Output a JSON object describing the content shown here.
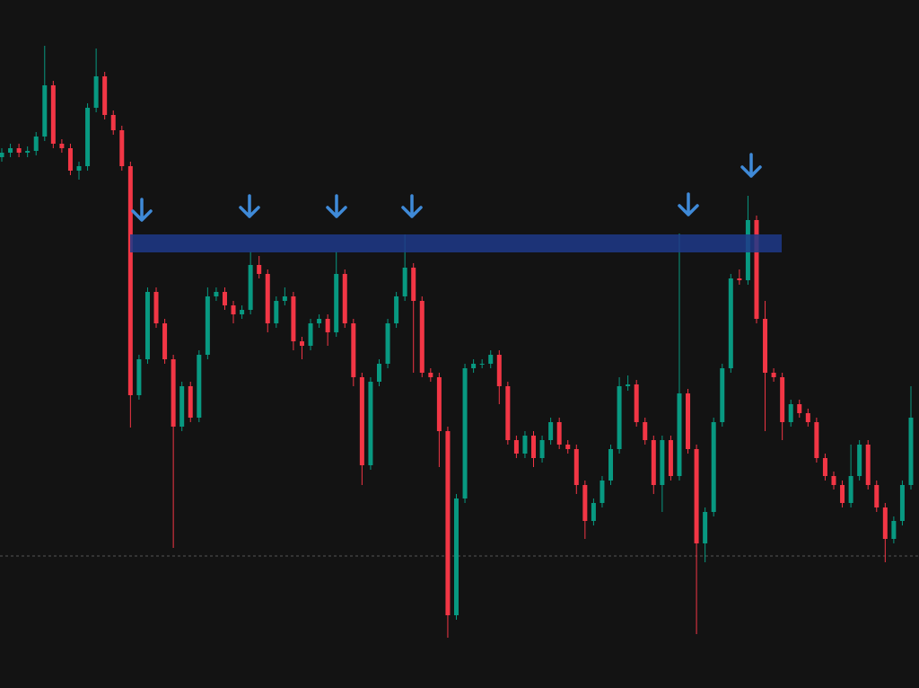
{
  "chart_data": {
    "type": "candlestick",
    "open": [
      591,
      596,
      601,
      596,
      598,
      614,
      671,
      606,
      601,
      576,
      581,
      646,
      681,
      638,
      621,
      581,
      326,
      366,
      441,
      406,
      366,
      291,
      336,
      301,
      371,
      436,
      441,
      426,
      416,
      421,
      471,
      461,
      406,
      431,
      436,
      386,
      381,
      406,
      411,
      396,
      461,
      406,
      346,
      248,
      341,
      361,
      406,
      436,
      468,
      431,
      351,
      346,
      286,
      81,
      211,
      356,
      361,
      361,
      371,
      336,
      276,
      261,
      281,
      256,
      276,
      296,
      271,
      266,
      226,
      186,
      206,
      231,
      266,
      336,
      338,
      296,
      276,
      226,
      276,
      236,
      328,
      266,
      161,
      196,
      296,
      356,
      456,
      454,
      521,
      411,
      351,
      346,
      296,
      316,
      306,
      296,
      256,
      236,
      226,
      206,
      236,
      271,
      226,
      201,
      166,
      186,
      226
    ],
    "high": [
      601,
      606,
      606,
      603,
      619,
      715,
      676,
      611,
      606,
      586,
      651,
      712,
      686,
      643,
      626,
      586,
      371,
      446,
      446,
      411,
      371,
      341,
      341,
      376,
      446,
      446,
      446,
      431,
      426,
      486,
      481,
      466,
      436,
      446,
      441,
      391,
      411,
      416,
      416,
      486,
      466,
      411,
      351,
      346,
      366,
      411,
      441,
      505,
      473,
      436,
      356,
      351,
      291,
      216,
      361,
      366,
      366,
      376,
      376,
      341,
      281,
      286,
      286,
      281,
      301,
      301,
      276,
      271,
      231,
      211,
      236,
      271,
      346,
      348,
      343,
      301,
      281,
      281,
      281,
      506,
      333,
      271,
      201,
      301,
      361,
      461,
      466,
      548,
      526,
      431,
      356,
      351,
      321,
      321,
      311,
      301,
      261,
      241,
      231,
      271,
      276,
      276,
      231,
      206,
      191,
      231,
      336
    ],
    "low": [
      586,
      591,
      591,
      591,
      593,
      609,
      601,
      596,
      571,
      566,
      576,
      641,
      633,
      616,
      576,
      290,
      321,
      361,
      401,
      361,
      156,
      286,
      296,
      296,
      366,
      431,
      421,
      406,
      411,
      416,
      456,
      396,
      401,
      426,
      376,
      366,
      376,
      401,
      381,
      391,
      401,
      336,
      226,
      243,
      336,
      356,
      401,
      431,
      351,
      346,
      341,
      246,
      56,
      76,
      206,
      351,
      356,
      356,
      316,
      271,
      256,
      256,
      246,
      251,
      271,
      266,
      261,
      216,
      166,
      181,
      201,
      226,
      261,
      331,
      291,
      271,
      216,
      196,
      231,
      231,
      261,
      60,
      140,
      191,
      291,
      351,
      449,
      449,
      406,
      286,
      341,
      276,
      291,
      301,
      291,
      251,
      231,
      221,
      201,
      201,
      231,
      221,
      196,
      140,
      161,
      181,
      221
    ],
    "close": [
      596,
      601,
      596,
      598,
      614,
      671,
      606,
      601,
      576,
      581,
      646,
      681,
      638,
      621,
      581,
      326,
      366,
      441,
      406,
      366,
      291,
      336,
      301,
      371,
      436,
      441,
      426,
      416,
      421,
      471,
      461,
      406,
      431,
      436,
      386,
      381,
      406,
      411,
      396,
      461,
      406,
      346,
      248,
      341,
      361,
      406,
      436,
      468,
      431,
      351,
      346,
      286,
      81,
      211,
      356,
      361,
      361,
      371,
      336,
      276,
      261,
      281,
      256,
      276,
      296,
      271,
      266,
      226,
      186,
      206,
      231,
      266,
      336,
      338,
      296,
      276,
      226,
      276,
      236,
      328,
      266,
      161,
      196,
      296,
      356,
      456,
      454,
      521,
      411,
      351,
      346,
      296,
      316,
      306,
      296,
      256,
      236,
      226,
      206,
      236,
      271,
      226,
      201,
      166,
      186,
      226,
      301
    ],
    "up_color": "#089981",
    "down_color": "#f23645",
    "zone": {
      "low": 485,
      "high": 505,
      "color": "#1e3a8a"
    },
    "reference_line": 147,
    "ylim": [
      0,
      766
    ]
  }
}
